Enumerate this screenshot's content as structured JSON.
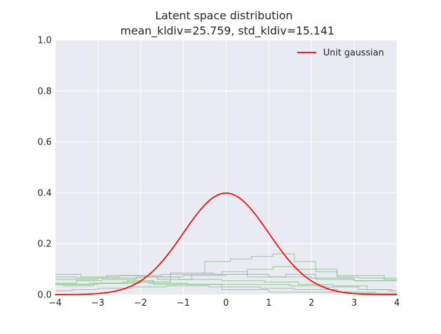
{
  "chart_data": {
    "type": "line",
    "title": "Latent space distribution",
    "subtitle": "mean_kldiv=25.759, std_kldiv=15.141",
    "xlabel": "",
    "ylabel": "",
    "xlim": [
      -4,
      4
    ],
    "ylim": [
      0.0,
      1.0
    ],
    "xticks": [
      -4,
      -3,
      -2,
      -1,
      0,
      1,
      2,
      3,
      4
    ],
    "xtick_labels": [
      "−4",
      "−3",
      "−2",
      "−1",
      "0",
      "1",
      "2",
      "3",
      "4"
    ],
    "yticks": [
      0.0,
      0.2,
      0.4,
      0.6,
      0.8,
      1.0
    ],
    "ytick_labels": [
      "0.0",
      "0.2",
      "0.4",
      "0.6",
      "0.8",
      "1.0"
    ],
    "grid": true,
    "legend_position": "upper right",
    "background_color": "#eaeaf2",
    "series": [
      {
        "name": "Unit gaussian",
        "kind": "pdf",
        "color": "#ff0000",
        "mean": 0,
        "std": 1
      }
    ],
    "histograms": {
      "color": "#7fbf7f",
      "items": [
        {
          "edges": [
            -4,
            -3.4,
            -2.5,
            -1.5,
            -0.5,
            0.1,
            0.6,
            1.1,
            1.6,
            2.1,
            2.6,
            3.1,
            4
          ],
          "heights": [
            0.08,
            0.07,
            0.075,
            0.08,
            0.13,
            0.14,
            0.15,
            0.16,
            0.13,
            0.09,
            0.07,
            0.065
          ]
        },
        {
          "edges": [
            -4,
            -3,
            -2,
            -1.3,
            -0.3,
            0.5,
            1.1,
            1.6,
            2.6,
            3.2,
            3.7,
            4
          ],
          "heights": [
            0.04,
            0.045,
            0.05,
            0.085,
            0.08,
            0.1,
            0.11,
            0.1,
            0.075,
            0.075,
            0.06
          ]
        },
        {
          "edges": [
            -4,
            -3.5,
            -2.9,
            -2.1,
            -1.6,
            -0.8,
            -0.1,
            0.5,
            1.4,
            2.1,
            3.0,
            4
          ],
          "heights": [
            0.045,
            0.055,
            0.06,
            0.07,
            0.06,
            0.08,
            0.09,
            0.07,
            0.08,
            0.06,
            0.055
          ]
        },
        {
          "edges": [
            -4,
            -3.5,
            -2.8,
            -1.9,
            -1.1,
            -0.1,
            0.9,
            1.7,
            2.5,
            3.3,
            3.9,
            4
          ],
          "heights": [
            0.07,
            0.065,
            0.075,
            0.07,
            0.06,
            0.055,
            0.05,
            0.04,
            0.035,
            0.02,
            0.015
          ]
        },
        {
          "edges": [
            -4,
            -3.6,
            -3.0,
            -2.2,
            -1.4,
            -0.4,
            0.8,
            1.6,
            2.6,
            3.5,
            4
          ],
          "heights": [
            0.015,
            0.02,
            0.025,
            0.03,
            0.035,
            0.03,
            0.025,
            0.02,
            0.01,
            0.005
          ]
        },
        {
          "edges": [
            -4,
            -3.2,
            -2.3,
            -1.7,
            -0.5,
            -0.1,
            1.0,
            2.1,
            2.9,
            3.4,
            4
          ],
          "heights": [
            0.04,
            0.045,
            0.055,
            0.04,
            0.04,
            0.02,
            0.01,
            0.01,
            0.005,
            0.005
          ]
        },
        {
          "edges": [
            -4,
            -3.8,
            -3.1,
            -2.4,
            -1.8,
            -0.9,
            0.2,
            1.5,
            2.3,
            3.1,
            3.8,
            4
          ],
          "heights": [
            0.04,
            0.035,
            0.045,
            0.05,
            0.045,
            0.04,
            0.04,
            0.035,
            0.03,
            0.02,
            0.015
          ]
        },
        {
          "edges": [
            -4,
            -3.0,
            -2.0,
            -1.0,
            0.0,
            1.0,
            2.0,
            3.0,
            4
          ],
          "heights": [
            0.06,
            0.065,
            0.07,
            0.075,
            0.08,
            0.07,
            0.065,
            0.055
          ]
        }
      ]
    }
  }
}
